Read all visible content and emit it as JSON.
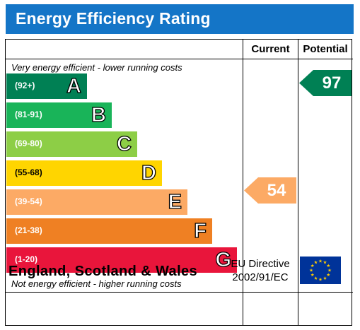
{
  "title": "Energy Efficiency Rating",
  "columns": {
    "current": "Current",
    "potential": "Potential"
  },
  "notes": {
    "top": "Very energy efficient - lower running costs",
    "bottom": "Not energy efficient - higher running costs"
  },
  "bands": [
    {
      "letter": "A",
      "range": "(92+)",
      "color": "#008054"
    },
    {
      "letter": "B",
      "range": "(81-91)",
      "color": "#19b459"
    },
    {
      "letter": "C",
      "range": "(69-80)",
      "color": "#8dce46"
    },
    {
      "letter": "D",
      "range": "(55-68)",
      "color": "#ffd500"
    },
    {
      "letter": "E",
      "range": "(39-54)",
      "color": "#fcaa65"
    },
    {
      "letter": "F",
      "range": "(21-38)",
      "color": "#ef8023"
    },
    {
      "letter": "G",
      "range": "(1-20)",
      "color": "#e9153b"
    }
  ],
  "ratings": {
    "current": {
      "value": "54",
      "color": "#fcaa65"
    },
    "potential": {
      "value": "97",
      "color": "#008054"
    }
  },
  "footer": {
    "country": "England, Scotland & Wales",
    "directive_line1": "EU Directive",
    "directive_line2": "2002/91/EC"
  },
  "colors": {
    "title_bar": "#1475c7",
    "eu_flag": "#003399",
    "eu_star": "#ffcc00"
  }
}
